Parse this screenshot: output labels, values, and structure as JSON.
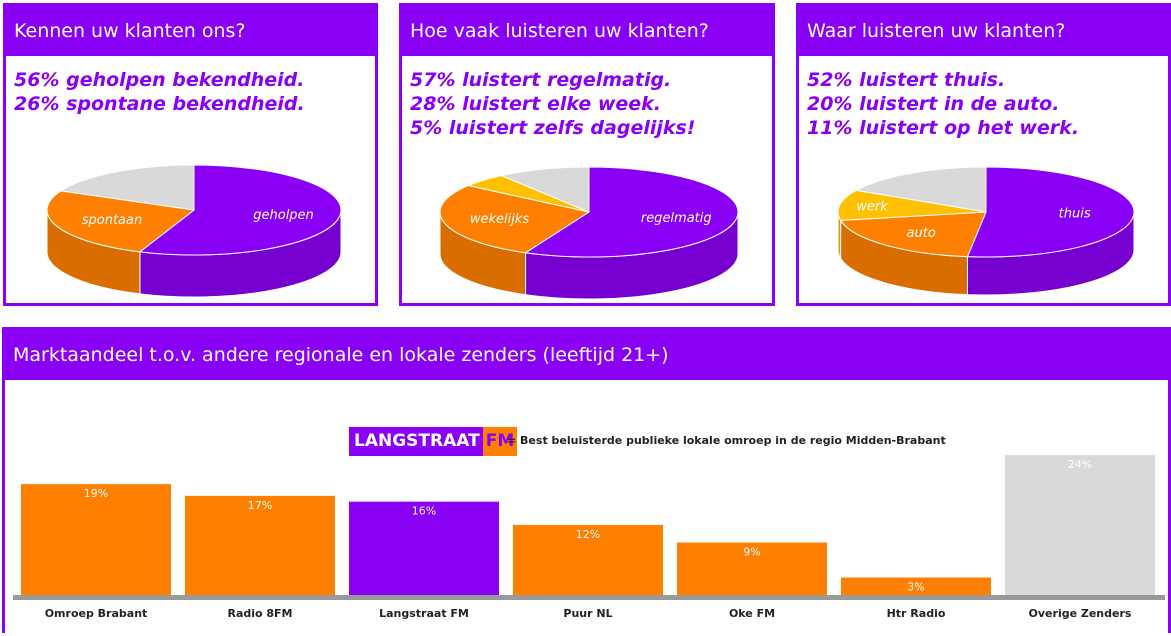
{
  "panels": [
    {
      "title": "Kennen uw klanten ons?",
      "stats": [
        "56% geholpen bekendheid.",
        "26% spontane bekendheid."
      ]
    },
    {
      "title": "Hoe vaak luisteren uw klanten?",
      "stats": [
        "57% luistert regelmatig.",
        "28% luistert elke week.",
        "5% luistert zelfs dagelijks!"
      ]
    },
    {
      "title": "Waar luisteren uw klanten?",
      "stats": [
        "52% luistert thuis.",
        "20% luistert in de auto.",
        "11% luistert op het werk."
      ]
    }
  ],
  "market": {
    "title": "Marktaandeel t.o.v. andere regionale en lokale zenders (leeftijd 21+)",
    "logo_part1": "LANGSTRAAT",
    "logo_part2": "FM",
    "legend": "= Best beluisterde publieke lokale omroep in de regio Midden-Brabant"
  },
  "colors": {
    "purple": "#8a00f5",
    "orange": "#ff8000",
    "yellow": "#ffc000",
    "grey": "#d9d9d9"
  },
  "chart_data": [
    {
      "type": "pie",
      "title": "Kennen uw klanten ons?",
      "slices": [
        {
          "label": "geholpen",
          "value": 56,
          "color": "#8a00f5"
        },
        {
          "label": "spontaan",
          "value": 26,
          "color": "#ff8000"
        },
        {
          "label": "",
          "value": 18,
          "color": "#d9d9d9"
        }
      ]
    },
    {
      "type": "pie",
      "title": "Hoe vaak luisteren uw klanten?",
      "slices": [
        {
          "label": "regelmatig",
          "value": 57,
          "color": "#8a00f5"
        },
        {
          "label": "wekelijks",
          "value": 28,
          "color": "#ff8000"
        },
        {
          "label": "",
          "value": 5,
          "color": "#ffc000"
        },
        {
          "label": "",
          "value": 10,
          "color": "#d9d9d9"
        }
      ]
    },
    {
      "type": "pie",
      "title": "Waar luisteren uw klanten?",
      "slices": [
        {
          "label": "thuis",
          "value": 52,
          "color": "#8a00f5"
        },
        {
          "label": "auto",
          "value": 20,
          "color": "#ff8000"
        },
        {
          "label": "werk",
          "value": 11,
          "color": "#ffc000"
        },
        {
          "label": "",
          "value": 17,
          "color": "#d9d9d9"
        }
      ]
    },
    {
      "type": "bar",
      "title": "Marktaandeel t.o.v. andere regionale en lokale zenders (leeftijd 21+)",
      "categories": [
        "Omroep Brabant",
        "Radio 8FM",
        "Langstraat FM",
        "Puur NL",
        "Oke FM",
        "Htr Radio",
        "Overige Zenders"
      ],
      "values": [
        19,
        17,
        16,
        12,
        9,
        3,
        24
      ],
      "value_labels": [
        "19%",
        "17%",
        "16%",
        "12%",
        "9%",
        "3%",
        "24%"
      ],
      "colors": [
        "#ff8000",
        "#ff8000",
        "#8a00f5",
        "#ff8000",
        "#ff8000",
        "#ff8000",
        "#d9d9d9"
      ]
    }
  ]
}
